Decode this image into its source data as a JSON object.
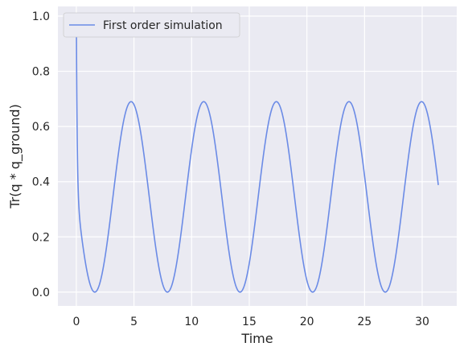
{
  "chart_data": {
    "type": "line",
    "xlabel": "Time",
    "ylabel": "Tr(q * q_ground)",
    "xlim": [
      -1.6,
      33.0
    ],
    "ylim": [
      -0.05,
      1.035
    ],
    "xticks": [
      0,
      5,
      10,
      15,
      20,
      25,
      30
    ],
    "yticks": [
      0.0,
      0.2,
      0.4,
      0.6,
      0.8,
      1.0
    ],
    "xtick_labels": [
      "0",
      "5",
      "10",
      "15",
      "20",
      "25",
      "30"
    ],
    "ytick_labels": [
      "0.0",
      "0.2",
      "0.4",
      "0.6",
      "0.8",
      "1.0"
    ],
    "grid": true,
    "legend_position": "top-left",
    "series": [
      {
        "name": "First order simulation",
        "color": "#6b8be6",
        "model": "initial drop from 1.0 then oscillation; value = 0.345 - 0.345*cos(2*pi*(t-1.6)/6.3)",
        "x": [
          0.0,
          0.1,
          0.2,
          0.35,
          0.5,
          0.8,
          1.2,
          1.6,
          2.4,
          3.2,
          4.0,
          4.75,
          5.5,
          6.3,
          7.1,
          7.9,
          8.7,
          9.5,
          10.3,
          11.05,
          11.8,
          12.6,
          13.4,
          14.2,
          15.0,
          15.8,
          16.6,
          17.35,
          18.1,
          18.9,
          19.7,
          20.5,
          21.3,
          22.1,
          22.9,
          23.65,
          24.4,
          25.2,
          26.0,
          26.8,
          27.6,
          28.4,
          29.2,
          29.95,
          30.7,
          31.4
        ],
        "y": [
          1.0,
          0.62,
          0.42,
          0.3,
          0.22,
          0.12,
          0.035,
          0.0,
          0.09,
          0.34,
          0.59,
          0.69,
          0.59,
          0.34,
          0.09,
          0.0,
          0.09,
          0.34,
          0.59,
          0.69,
          0.59,
          0.34,
          0.09,
          0.0,
          0.09,
          0.34,
          0.59,
          0.69,
          0.59,
          0.34,
          0.09,
          0.0,
          0.09,
          0.34,
          0.59,
          0.69,
          0.59,
          0.34,
          0.09,
          0.0,
          0.09,
          0.34,
          0.59,
          0.69,
          0.59,
          0.41
        ]
      }
    ]
  }
}
